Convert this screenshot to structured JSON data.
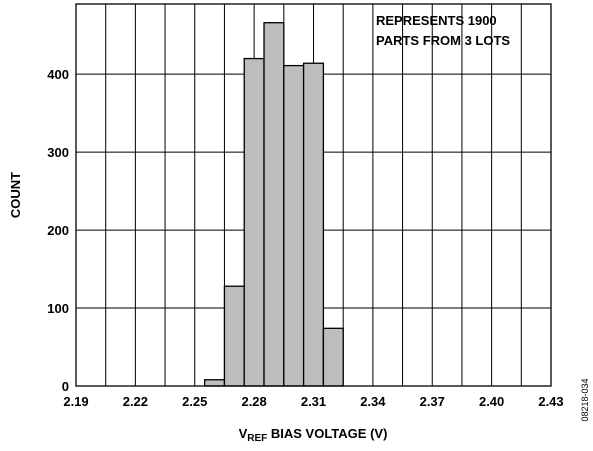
{
  "chart_data": {
    "type": "bar",
    "bin_start": [
      2.255,
      2.265,
      2.275,
      2.285,
      2.295,
      2.305,
      2.315
    ],
    "bin_width": 0.01,
    "values": [
      8,
      128,
      420,
      466,
      411,
      414,
      74
    ],
    "xlim": [
      2.19,
      2.43
    ],
    "ylim": [
      0,
      490
    ],
    "x_ticks": [
      2.19,
      2.22,
      2.25,
      2.28,
      2.31,
      2.34,
      2.37,
      2.4,
      2.43
    ],
    "x_tick_labels": [
      "2.19",
      "2.22",
      "2.25",
      "2.28",
      "2.31",
      "2.34",
      "2.37",
      "2.40",
      "2.43"
    ],
    "x_grid": [
      2.19,
      2.205,
      2.22,
      2.235,
      2.25,
      2.265,
      2.28,
      2.295,
      2.31,
      2.325,
      2.34,
      2.355,
      2.37,
      2.385,
      2.4,
      2.415,
      2.43
    ],
    "y_ticks": [
      0,
      100,
      200,
      300,
      400
    ],
    "y_tick_labels": [
      "0",
      "100",
      "200",
      "300",
      "400"
    ],
    "grid": true,
    "ylabel": "COUNT",
    "xlabel_main": "V",
    "xlabel_sub": "REF",
    "xlabel_rest": " BIAS VOLTAGE (V)",
    "annotation": [
      "REPRESENTS 1900",
      "PARTS FROM 3 LOTS"
    ],
    "figure_id": "08218-034",
    "colors": {
      "bar_fill": "#bdbdbd",
      "bar_stroke": "#000000",
      "grid": "#000000",
      "background": "#ffffff"
    }
  }
}
